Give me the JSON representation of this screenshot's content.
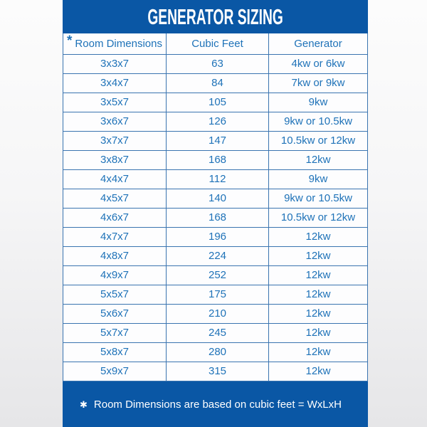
{
  "chart_data": {
    "type": "table",
    "title": "GENERATOR SIZING",
    "header_note_marker": "*",
    "columns": [
      "Room Dimensions",
      "Cubic Feet",
      "Generator"
    ],
    "rows": [
      [
        "3x3x7",
        "63",
        "4kw or 6kw"
      ],
      [
        "3x4x7",
        "84",
        "7kw or 9kw"
      ],
      [
        "3x5x7",
        "105",
        "9kw"
      ],
      [
        "3x6x7",
        "126",
        "9kw or 10.5kw"
      ],
      [
        "3x7x7",
        "147",
        "10.5kw or 12kw"
      ],
      [
        "3x8x7",
        "168",
        "12kw"
      ],
      [
        "4x4x7",
        "112",
        "9kw"
      ],
      [
        "4x5x7",
        "140",
        "9kw or 10.5kw"
      ],
      [
        "4x6x7",
        "168",
        "10.5kw or 12kw"
      ],
      [
        "4x7x7",
        "196",
        "12kw"
      ],
      [
        "4x8x7",
        "224",
        "12kw"
      ],
      [
        "4x9x7",
        "252",
        "12kw"
      ],
      [
        "5x5x7",
        "175",
        "12kw"
      ],
      [
        "5x6x7",
        "210",
        "12kw"
      ],
      [
        "5x7x7",
        "245",
        "12kw"
      ],
      [
        "5x8x7",
        "280",
        "12kw"
      ],
      [
        "5x9x7",
        "315",
        "12kw"
      ]
    ],
    "footnote_marker": "✱",
    "footnote": "Room Dimensions are based on cubic feet = WxLxH"
  },
  "colors": {
    "band_blue": "#0a57a5",
    "grid_blue": "#3a74b0",
    "text_blue": "#1e72b8"
  }
}
